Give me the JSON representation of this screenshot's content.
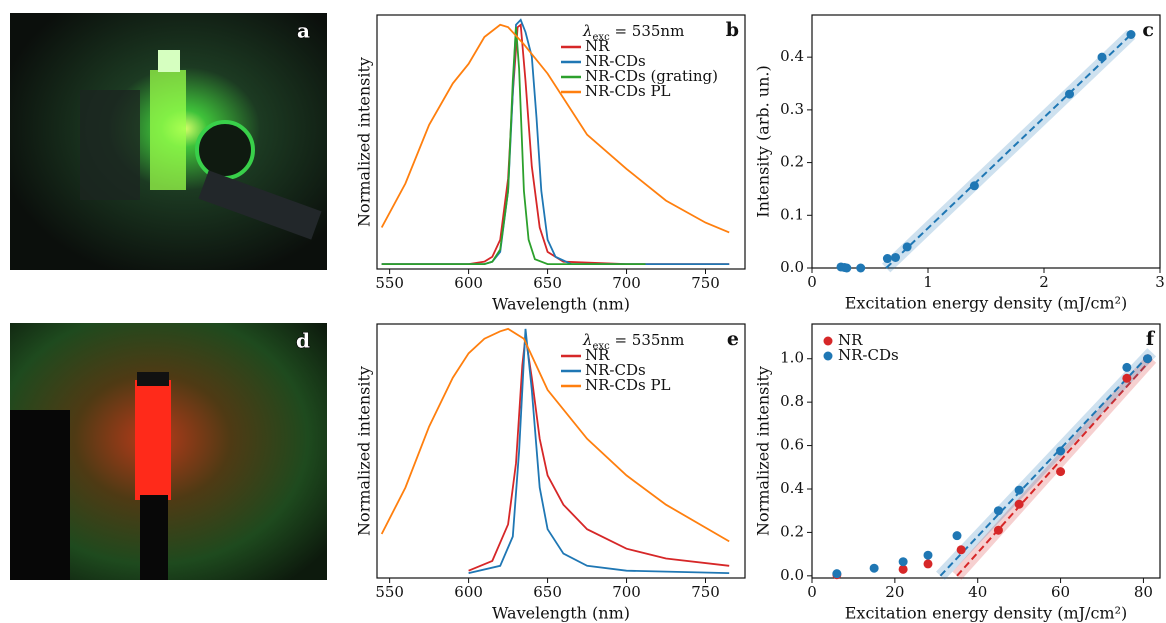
{
  "photos": [
    {
      "label": "a"
    },
    {
      "label": "d"
    }
  ],
  "chart_data": [
    {
      "type": "line",
      "panel_label": "b",
      "xlabel": "Wavelength (nm)",
      "ylabel": "Normalized intensity",
      "annotation": {
        "symbol": "λ",
        "subscript": "exc",
        "text": " = 535nm"
      },
      "legend": "upper right",
      "xlim": [
        542,
        775
      ],
      "xticks": [
        550,
        600,
        650,
        700,
        750
      ],
      "ylim": [
        -0.02,
        1.02
      ],
      "series": [
        {
          "name": "NR",
          "color": "#d62728",
          "x": [
            545,
            600,
            610,
            615,
            620,
            625,
            628,
            631,
            633,
            636,
            640,
            645,
            650,
            660,
            700,
            765
          ],
          "values": [
            0,
            0,
            0.01,
            0.03,
            0.1,
            0.35,
            0.7,
            0.97,
            0.98,
            0.75,
            0.4,
            0.15,
            0.05,
            0.01,
            0,
            0
          ]
        },
        {
          "name": "NR-CDs",
          "color": "#1f77b4",
          "x": [
            545,
            600,
            610,
            615,
            620,
            625,
            628,
            630,
            633,
            636,
            640,
            643,
            646,
            650,
            655,
            665,
            700,
            765
          ],
          "values": [
            0,
            0,
            0,
            0.01,
            0.05,
            0.3,
            0.7,
            0.98,
            1.0,
            0.95,
            0.85,
            0.6,
            0.3,
            0.1,
            0.03,
            0,
            0,
            0
          ]
        },
        {
          "name": "NR-CDs (grating)",
          "color": "#2ca02c",
          "x": [
            545,
            600,
            610,
            615,
            620,
            625,
            628,
            630,
            632,
            635,
            638,
            642,
            650,
            712
          ],
          "values": [
            0,
            0,
            0,
            0.01,
            0.06,
            0.3,
            0.75,
            0.97,
            0.8,
            0.3,
            0.1,
            0.02,
            0,
            0
          ]
        },
        {
          "name": "NR-CDs PL",
          "color": "#ff7f0e",
          "x": [
            545,
            560,
            575,
            590,
            600,
            610,
            620,
            625,
            635,
            650,
            675,
            700,
            725,
            750,
            765
          ],
          "values": [
            0.15,
            0.33,
            0.57,
            0.74,
            0.82,
            0.93,
            0.98,
            0.97,
            0.9,
            0.78,
            0.53,
            0.39,
            0.26,
            0.17,
            0.13
          ]
        }
      ]
    },
    {
      "type": "scatter",
      "panel_label": "c",
      "xlabel": "Excitation energy density (mJ/cm²)",
      "ylabel": "Intensity (arb. un.)",
      "xlim": [
        0,
        3
      ],
      "xticks": [
        0,
        1,
        2,
        3
      ],
      "ylim": [
        0,
        0.48
      ],
      "yticks": [
        {
          "value": 0,
          "label": "0.0"
        },
        0.1,
        0.2,
        0.3,
        0.4
      ],
      "series": [
        {
          "color": "#1f77b4",
          "x": [
            0.25,
            0.28,
            0.3,
            0.42,
            0.65,
            0.72,
            0.82,
            1.4,
            2.22,
            2.5,
            2.75
          ],
          "values": [
            0.002,
            0.001,
            0,
            0,
            0.018,
            0.02,
            0.04,
            0.156,
            0.33,
            0.4,
            0.443
          ]
        }
      ],
      "fit_lines": [
        {
          "color": "#1f77b4",
          "x": [
            0.64,
            2.75
          ],
          "values": [
            0,
            0.443
          ]
        }
      ]
    },
    {
      "type": "line",
      "panel_label": "e",
      "xlabel": "Wavelength (nm)",
      "ylabel": "Normalized intensity",
      "annotation": {
        "symbol": "λ",
        "subscript": "exc",
        "text": " = 535nm"
      },
      "legend": "upper right",
      "xlim": [
        542,
        775
      ],
      "xticks": [
        550,
        600,
        650,
        700,
        750
      ],
      "ylim": [
        -0.02,
        1.02
      ],
      "series": [
        {
          "name": "NR",
          "color": "#d62728",
          "x": [
            600,
            615,
            625,
            630,
            634,
            636,
            640,
            645,
            650,
            660,
            675,
            700,
            725,
            765
          ],
          "values": [
            0.01,
            0.05,
            0.2,
            0.45,
            0.85,
            0.97,
            0.8,
            0.55,
            0.4,
            0.28,
            0.18,
            0.1,
            0.06,
            0.03
          ]
        },
        {
          "name": "NR-CDs",
          "color": "#1f77b4",
          "x": [
            600,
            620,
            628,
            632,
            636,
            640,
            645,
            650,
            660,
            675,
            700,
            765
          ],
          "values": [
            0,
            0.03,
            0.15,
            0.5,
            1.0,
            0.75,
            0.35,
            0.18,
            0.08,
            0.03,
            0.01,
            0
          ]
        },
        {
          "name": "NR-CDs PL",
          "color": "#ff7f0e",
          "x": [
            545,
            560,
            575,
            590,
            600,
            610,
            620,
            625,
            635,
            650,
            675,
            700,
            725,
            765
          ],
          "values": [
            0.16,
            0.35,
            0.6,
            0.8,
            0.9,
            0.96,
            0.99,
            1.0,
            0.96,
            0.75,
            0.55,
            0.4,
            0.28,
            0.13
          ]
        }
      ]
    },
    {
      "type": "scatter",
      "panel_label": "f",
      "xlabel": "Excitation energy density (mJ/cm²)",
      "ylabel": "Normalized intensity",
      "legend": "upper left",
      "xlim": [
        0,
        84
      ],
      "xticks": [
        0,
        20,
        40,
        60,
        80
      ],
      "ylim": [
        -0.01,
        1.16
      ],
      "yticks": [
        {
          "value": 0,
          "label": "0.0"
        },
        0.2,
        0.4,
        0.6,
        0.8,
        {
          "value": 1,
          "label": "1.0"
        }
      ],
      "series": [
        {
          "name": "NR",
          "color": "#d62728",
          "x": [
            6,
            22,
            28,
            36,
            45,
            50,
            60,
            76,
            81
          ],
          "values": [
            0.005,
            0.03,
            0.055,
            0.12,
            0.21,
            0.33,
            0.48,
            0.91,
            1.0
          ]
        },
        {
          "name": "NR-CDs",
          "color": "#1f77b4",
          "x": [
            6,
            15,
            22,
            28,
            35,
            45,
            50,
            60,
            76,
            81
          ],
          "values": [
            0.01,
            0.035,
            0.065,
            0.095,
            0.185,
            0.3,
            0.395,
            0.575,
            0.96,
            1.0
          ]
        }
      ],
      "fit_lines": [
        {
          "color": "#d62728",
          "x": [
            35,
            82
          ],
          "values": [
            0,
            1.0
          ]
        },
        {
          "color": "#1f77b4",
          "x": [
            31,
            82
          ],
          "values": [
            0,
            1.03
          ]
        }
      ]
    }
  ]
}
